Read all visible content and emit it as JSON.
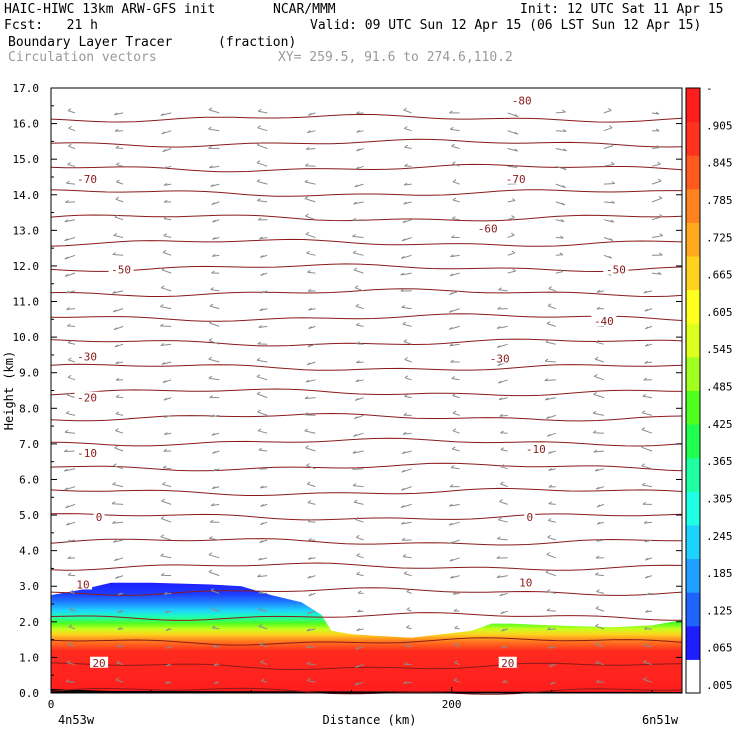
{
  "header": {
    "model": "HAIC-HIWC 13km ARW-GFS init",
    "org": "NCAR/MMM",
    "init": "Init: 12 UTC Sat 11 Apr 15",
    "fcst": "Fcst:   21 h",
    "valid": "Valid: 09 UTC Sun 12 Apr 15 (06 LST Sun 12 Apr 15)",
    "field": "Boundary Layer Tracer",
    "field_units": "(fraction)",
    "vectors": "Circulation vectors",
    "xy": "XY= 259.5, 91.6 to 274.6,110.2"
  },
  "colors": {
    "contour": "#8b1a1a",
    "vector": "#8c8c8c",
    "scale": [
      "#ffffff",
      "#1e1eff",
      "#1e64ff",
      "#1ea0ff",
      "#1ed2ff",
      "#1effe6",
      "#1effa0",
      "#1eff50",
      "#50ff1e",
      "#a0ff1e",
      "#dcff1e",
      "#ffff1e",
      "#ffd21e",
      "#ffaa1e",
      "#ff821e",
      "#ff5a1e",
      "#ff321e",
      "#ff1e1e"
    ]
  },
  "chart_data": {
    "type": "heatmap",
    "xlabel": "Distance (km)",
    "ylabel": "Height (km)",
    "xlim": [
      0,
      315
    ],
    "ylim": [
      0,
      17
    ],
    "x_ticks": [
      0,
      200
    ],
    "x_tick_labels": [
      "0",
      "200"
    ],
    "x_end_labels": [
      "4n53w",
      "6n51w"
    ],
    "y_ticks": [
      0.0,
      1.0,
      2.0,
      3.0,
      4.0,
      5.0,
      6.0,
      7.0,
      8.0,
      9.0,
      10.0,
      11.0,
      12.0,
      13.0,
      14.0,
      15.0,
      16.0,
      17.0
    ],
    "y_tick_labels": [
      "0.0",
      "1.0",
      "2.0",
      "3.0",
      "4.0",
      "5.0",
      "6.0",
      "7.0",
      "8.0",
      "9.0",
      "10.0",
      "11.0",
      "12.0",
      "13.0",
      "14.0",
      "15.0",
      "16.0",
      "17.0"
    ],
    "colorbar_labels": [
      ".005",
      ".065",
      ".125",
      ".185",
      ".245",
      ".305",
      ".365",
      ".425",
      ".485",
      ".545",
      ".605",
      ".665",
      ".725",
      ".785",
      ".845",
      ".905",
      "-"
    ],
    "tracer_top": [
      {
        "x": 0,
        "h": 2.75
      },
      {
        "x": 15,
        "h": 2.9
      },
      {
        "x": 30,
        "h": 3.1
      },
      {
        "x": 50,
        "h": 3.1
      },
      {
        "x": 80,
        "h": 3.05
      },
      {
        "x": 95,
        "h": 3.0
      },
      {
        "x": 110,
        "h": 2.75
      },
      {
        "x": 125,
        "h": 2.55
      },
      {
        "x": 135,
        "h": 2.2
      },
      {
        "x": 140,
        "h": 1.75
      },
      {
        "x": 150,
        "h": 1.65
      },
      {
        "x": 180,
        "h": 1.55
      },
      {
        "x": 210,
        "h": 1.75
      },
      {
        "x": 220,
        "h": 1.95
      },
      {
        "x": 230,
        "h": 1.95
      },
      {
        "x": 250,
        "h": 1.9
      },
      {
        "x": 280,
        "h": 1.85
      },
      {
        "x": 300,
        "h": 1.9
      },
      {
        "x": 315,
        "h": 2.05
      }
    ],
    "contour_labels": [
      {
        "text": "-80",
        "x": 235,
        "h": 16.65
      },
      {
        "text": "-70",
        "x": 18,
        "h": 14.45
      },
      {
        "text": "-70",
        "x": 232,
        "h": 14.45
      },
      {
        "text": "-60",
        "x": 218,
        "h": 13.05
      },
      {
        "text": "-50",
        "x": 35,
        "h": 11.9
      },
      {
        "text": "-50",
        "x": 282,
        "h": 11.9
      },
      {
        "text": "-40",
        "x": 276,
        "h": 10.45
      },
      {
        "text": "-30",
        "x": 18,
        "h": 9.45
      },
      {
        "text": "-30",
        "x": 224,
        "h": 9.4
      },
      {
        "text": "-20",
        "x": 18,
        "h": 8.3
      },
      {
        "text": "-10",
        "x": 18,
        "h": 6.75
      },
      {
        "text": "-10",
        "x": 242,
        "h": 6.85
      },
      {
        "text": "0",
        "x": 24,
        "h": 4.95
      },
      {
        "text": "0",
        "x": 239,
        "h": 4.95
      },
      {
        "text": "10",
        "x": 16,
        "h": 3.05
      },
      {
        "text": "10",
        "x": 237,
        "h": 3.1
      },
      {
        "text": "20",
        "x": 24,
        "h": 0.85
      },
      {
        "text": "20",
        "x": 228,
        "h": 0.85
      }
    ]
  }
}
